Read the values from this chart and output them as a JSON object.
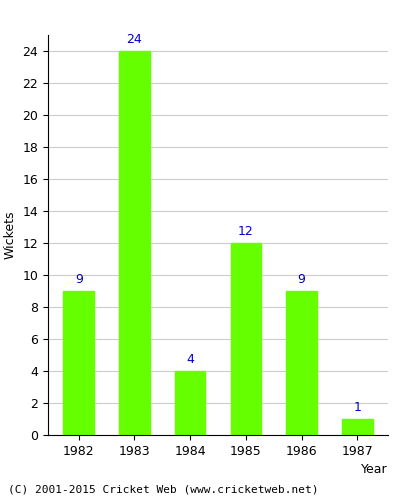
{
  "years": [
    "1982",
    "1983",
    "1984",
    "1985",
    "1986",
    "1987"
  ],
  "values": [
    9,
    24,
    4,
    12,
    9,
    1
  ],
  "bar_color": "#66ff00",
  "bar_edge_color": "#66ff00",
  "label_color": "#0000cc",
  "xlabel": "Year",
  "ylabel": "Wickets",
  "ylim": [
    0,
    25
  ],
  "yticks": [
    0,
    2,
    4,
    6,
    8,
    10,
    12,
    14,
    16,
    18,
    20,
    22,
    24
  ],
  "footnote": "(C) 2001-2015 Cricket Web (www.cricketweb.net)",
  "label_fontsize": 9,
  "axis_label_fontsize": 9,
  "tick_fontsize": 9,
  "footnote_fontsize": 8,
  "bg_color": "#ffffff",
  "plot_bg_color": "#ffffff",
  "grid_color": "#cccccc"
}
